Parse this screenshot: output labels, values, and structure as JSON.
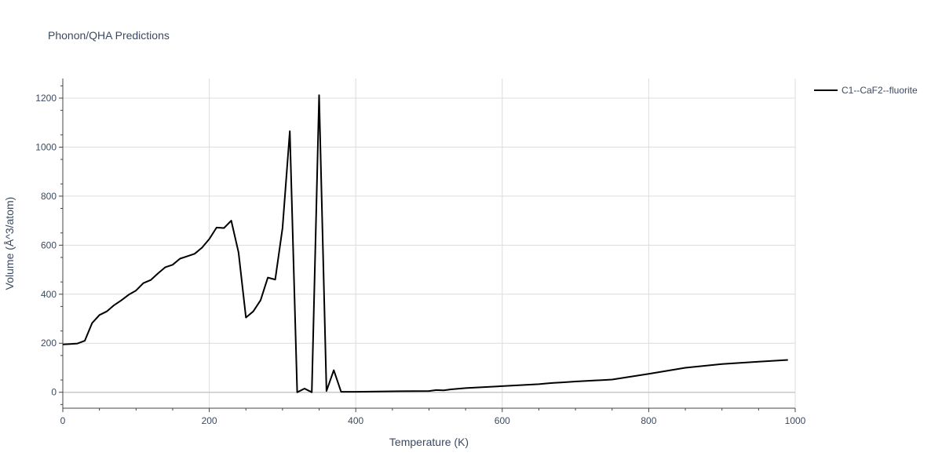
{
  "chart_data": {
    "type": "line",
    "title": "Phonon/QHA Predictions",
    "xlabel": "Temperature (K)",
    "ylabel": "Volume (Å^3/atom)",
    "xlim": [
      0,
      1000
    ],
    "ylim": [
      -65,
      1280
    ],
    "xticks": [
      0,
      200,
      400,
      600,
      800,
      1000
    ],
    "yticks": [
      0,
      200,
      400,
      600,
      800,
      1000,
      1200
    ],
    "grid": true,
    "legend_position": "top-right",
    "series": [
      {
        "name": "C1--CaF2--fluorite",
        "color": "#000000",
        "x": [
          0,
          10,
          20,
          30,
          40,
          50,
          60,
          70,
          80,
          90,
          100,
          110,
          120,
          130,
          140,
          150,
          160,
          170,
          180,
          190,
          200,
          210,
          220,
          230,
          240,
          250,
          260,
          270,
          280,
          290,
          300,
          310,
          320,
          330,
          340,
          350,
          360,
          370,
          380,
          390,
          400,
          450,
          500,
          510,
          520,
          530,
          550,
          600,
          650,
          660,
          670,
          680,
          690,
          700,
          750,
          800,
          850,
          900,
          950,
          990
        ],
        "y": [
          195,
          197,
          199,
          210,
          282,
          315,
          330,
          355,
          375,
          398,
          415,
          445,
          458,
          485,
          510,
          520,
          545,
          555,
          565,
          590,
          625,
          672,
          670,
          700,
          570,
          305,
          330,
          375,
          468,
          460,
          670,
          1065,
          0,
          15,
          0,
          1212,
          5,
          90,
          2,
          2,
          2,
          4,
          5,
          9,
          8,
          12,
          17,
          25,
          33,
          36,
          38,
          40,
          42,
          44,
          52,
          75,
          100,
          115,
          125,
          132
        ]
      }
    ]
  }
}
